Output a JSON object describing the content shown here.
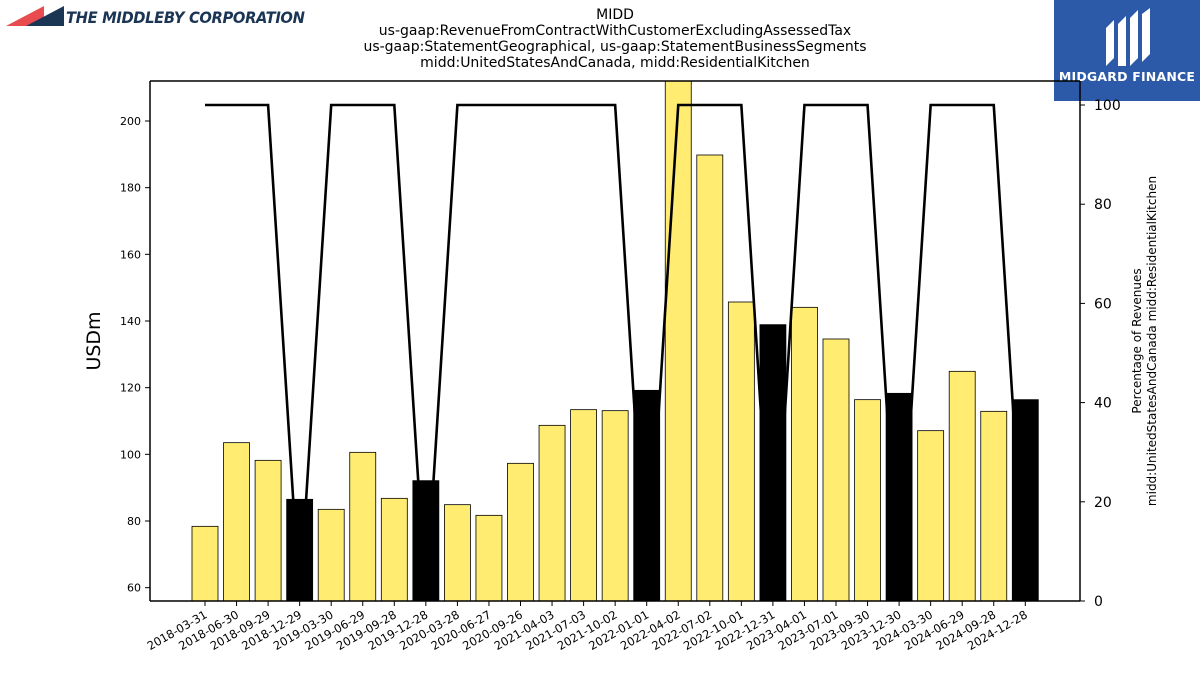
{
  "branding": {
    "left_logo_text": "THE MIDDLEBY CORPORATION",
    "right_logo_text": "MIDGARD FINANCE"
  },
  "chart_data": {
    "type": "bar",
    "title_lines": [
      "MIDD",
      "us-gaap:RevenueFromContractWithCustomerExcludingAssessedTax",
      "us-gaap:StatementGeographical, us-gaap:StatementBusinessSegments",
      "midd:UnitedStatesAndCanada, midd:ResidentialKitchen"
    ],
    "ylabel": "USDm",
    "ylabel_right_lines": [
      "Percentage of Revenues",
      "midd:UnitedStatesAndCanada midd:ResidentialKitchen"
    ],
    "ylim": [
      56,
      212
    ],
    "y_ticks": [
      60,
      80,
      100,
      120,
      140,
      160,
      180,
      200
    ],
    "ylim_right": [
      0,
      104.84
    ],
    "y_ticks_right": [
      0,
      20,
      40,
      60,
      80,
      100
    ],
    "colors": {
      "bar_normal": "#ffec70",
      "bar_highlight": "#000000",
      "line": "#000000"
    },
    "categories": [
      "2018-03-31",
      "2018-06-30",
      "2018-09-29",
      "2018-12-29",
      "2019-03-30",
      "2019-06-29",
      "2019-09-28",
      "2019-12-28",
      "2020-03-28",
      "2020-06-27",
      "2020-09-26",
      "2021-04-03",
      "2021-07-03",
      "2021-10-02",
      "2022-01-01",
      "2022-04-02",
      "2022-07-02",
      "2022-10-01",
      "2022-12-31",
      "2023-04-01",
      "2023-07-01",
      "2023-09-30",
      "2023-12-30",
      "2024-03-30",
      "2024-06-29",
      "2024-09-28",
      "2024-12-28"
    ],
    "series": [
      {
        "type": "bar",
        "values": [
          78.4,
          103.5,
          98.2,
          86.5,
          83.5,
          100.6,
          86.8,
          92.1,
          84.9,
          81.7,
          97.3,
          108.7,
          113.4,
          113.1,
          119.2,
          213.0,
          189.8,
          145.7,
          138.9,
          144.1,
          134.6,
          116.4,
          118.3,
          107.1,
          124.9,
          112.9,
          116.4
        ],
        "highlight": [
          false,
          false,
          false,
          true,
          false,
          false,
          false,
          true,
          false,
          false,
          false,
          false,
          false,
          false,
          true,
          false,
          false,
          false,
          true,
          false,
          false,
          false,
          true,
          false,
          false,
          false,
          true
        ]
      },
      {
        "type": "line",
        "axis": "right",
        "values": [
          100,
          100,
          100,
          0,
          100,
          100,
          100,
          0,
          100,
          100,
          100,
          100,
          100,
          100,
          0,
          100,
          100,
          100,
          0,
          100,
          100,
          100,
          0,
          100,
          100,
          100,
          0
        ]
      }
    ]
  }
}
